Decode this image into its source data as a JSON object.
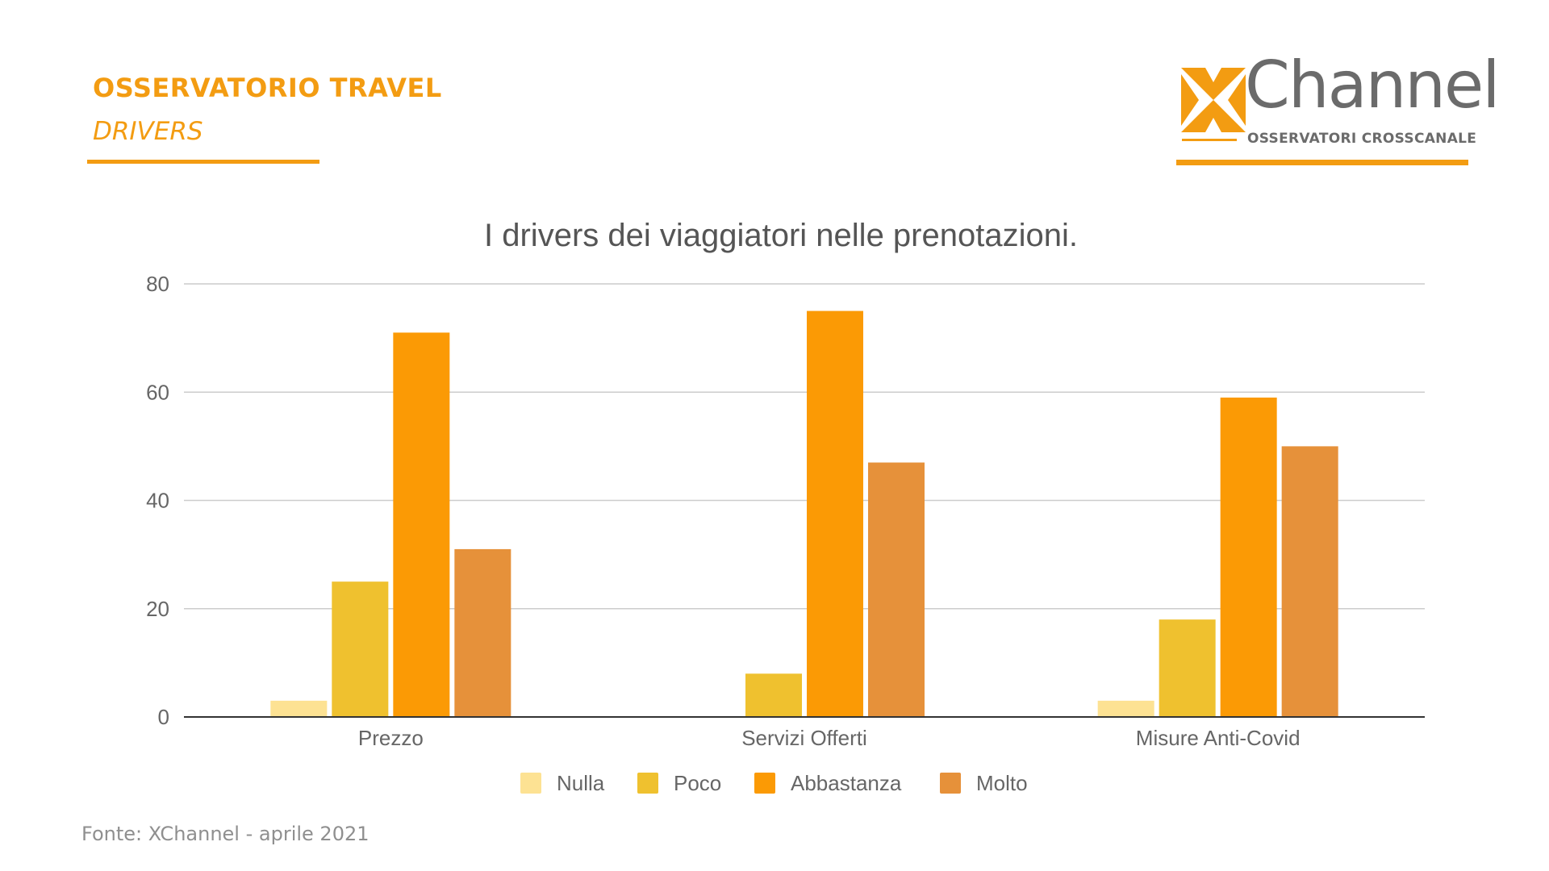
{
  "header": {
    "title": "OSSERVATORIO TRAVEL",
    "subtitle": "DRIVERS"
  },
  "logo": {
    "word": "Channel",
    "tagline": "OSSERVATORI CROSSCANALE",
    "colors": {
      "accent": "#f39c12",
      "text": "#6b6b6b"
    }
  },
  "source": "Fonte: XChannel - aprile 2021",
  "chart_data": {
    "type": "bar",
    "title": "I drivers dei viaggiatori nelle prenotazioni.",
    "categories": [
      "Prezzo",
      "Servizi Offerti",
      "Misure Anti-Covid"
    ],
    "series": [
      {
        "name": "Nulla",
        "values": [
          3,
          0,
          3
        ],
        "color": "#fde293"
      },
      {
        "name": "Poco",
        "values": [
          25,
          8,
          18
        ],
        "color": "#efc12f"
      },
      {
        "name": "Abbastanza",
        "values": [
          71,
          75,
          59
        ],
        "color": "#fb9a05"
      },
      {
        "name": "Molto",
        "values": [
          31,
          47,
          50
        ],
        "color": "#e6913a"
      }
    ],
    "ylim": [
      0,
      80
    ],
    "yticks": [
      0,
      20,
      40,
      60,
      80
    ],
    "grid": true,
    "legend": "bottom"
  }
}
